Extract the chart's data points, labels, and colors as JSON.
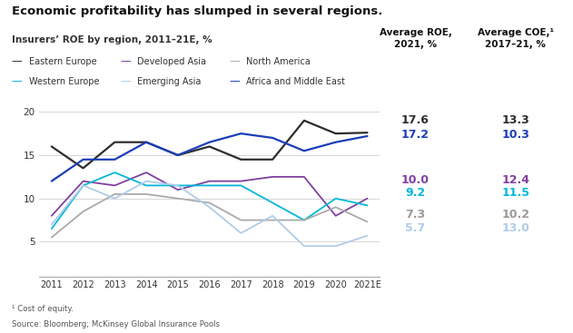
{
  "title": "Economic profitability has slumped in several regions.",
  "subtitle": "Insurers’ ROE by region, 2011–21E, %",
  "years": [
    2011,
    2012,
    2013,
    2014,
    2015,
    2016,
    2017,
    2018,
    2019,
    2020,
    2021
  ],
  "year_labels": [
    "2011",
    "2012",
    "2013",
    "2014",
    "2015",
    "2016",
    "2017",
    "2018",
    "2019",
    "2020",
    "2021E"
  ],
  "series": {
    "Eastern Europe": {
      "values": [
        16.0,
        13.5,
        16.5,
        16.5,
        15.0,
        16.0,
        14.5,
        14.5,
        19.0,
        17.5,
        17.6
      ],
      "color": "#2d2d2d",
      "linewidth": 1.6
    },
    "Africa and Middle East": {
      "values": [
        12.0,
        14.5,
        14.5,
        16.5,
        15.0,
        16.5,
        17.5,
        17.0,
        15.5,
        16.5,
        17.2
      ],
      "color": "#1a3eb8",
      "linewidth": 1.6
    },
    "Developed Asia": {
      "values": [
        8.0,
        12.0,
        11.5,
        13.0,
        11.0,
        12.0,
        12.0,
        12.5,
        12.5,
        8.0,
        10.0
      ],
      "color": "#8040a0",
      "linewidth": 1.3
    },
    "Western Europe": {
      "values": [
        6.5,
        11.5,
        13.0,
        11.5,
        11.5,
        11.5,
        11.5,
        9.5,
        7.5,
        10.0,
        9.2
      ],
      "color": "#00b8d8",
      "linewidth": 1.3
    },
    "North America": {
      "values": [
        5.5,
        8.5,
        10.5,
        10.5,
        10.0,
        9.5,
        7.5,
        7.5,
        7.5,
        9.0,
        7.3
      ],
      "color": "#aaaaaa",
      "linewidth": 1.3
    },
    "Emerging Asia": {
      "values": [
        7.0,
        11.5,
        10.0,
        12.0,
        11.5,
        9.0,
        6.0,
        8.0,
        4.5,
        4.5,
        5.7
      ],
      "color": "#b0cce8",
      "linewidth": 1.3
    }
  },
  "avg_roe_2021": {
    "Eastern Europe": {
      "value": "17.6",
      "color": "#2d2d2d"
    },
    "Africa and Middle East": {
      "value": "17.2",
      "color": "#1a3eb8"
    },
    "Developed Asia": {
      "value": "10.0",
      "color": "#8040a0"
    },
    "Western Europe": {
      "value": "9.2",
      "color": "#00b8d8"
    },
    "North America": {
      "value": "7.3",
      "color": "#999999"
    },
    "Emerging Asia": {
      "value": "5.7",
      "color": "#b0cce8"
    }
  },
  "avg_coe_2017_21": {
    "Eastern Europe": {
      "value": "13.3",
      "color": "#2d2d2d"
    },
    "Africa and Middle East": {
      "value": "10.3",
      "color": "#1a3eb8"
    },
    "Developed Asia": {
      "value": "12.4",
      "color": "#8040a0"
    },
    "Western Europe": {
      "value": "11.5",
      "color": "#00b8d8"
    },
    "North America": {
      "value": "10.2",
      "color": "#999999"
    },
    "Emerging Asia": {
      "value": "13.0",
      "color": "#b0cce8"
    }
  },
  "legend_row1": [
    "Eastern Europe",
    "Developed Asia",
    "North America"
  ],
  "legend_row2": [
    "Western Europe",
    "Emerging Asia",
    "Africa and Middle East"
  ],
  "ylim": [
    1,
    21
  ],
  "yticks": [
    5,
    10,
    15,
    20
  ],
  "footnote": "¹ Cost of equity.",
  "source": "Source: Bloomberg; McKinsey Global Insurance Pools",
  "col_header_roe": "Average ROE,\n2021, %",
  "col_header_coe": "Average COE,¹\n2017–21, %",
  "background_color": "#ffffff"
}
